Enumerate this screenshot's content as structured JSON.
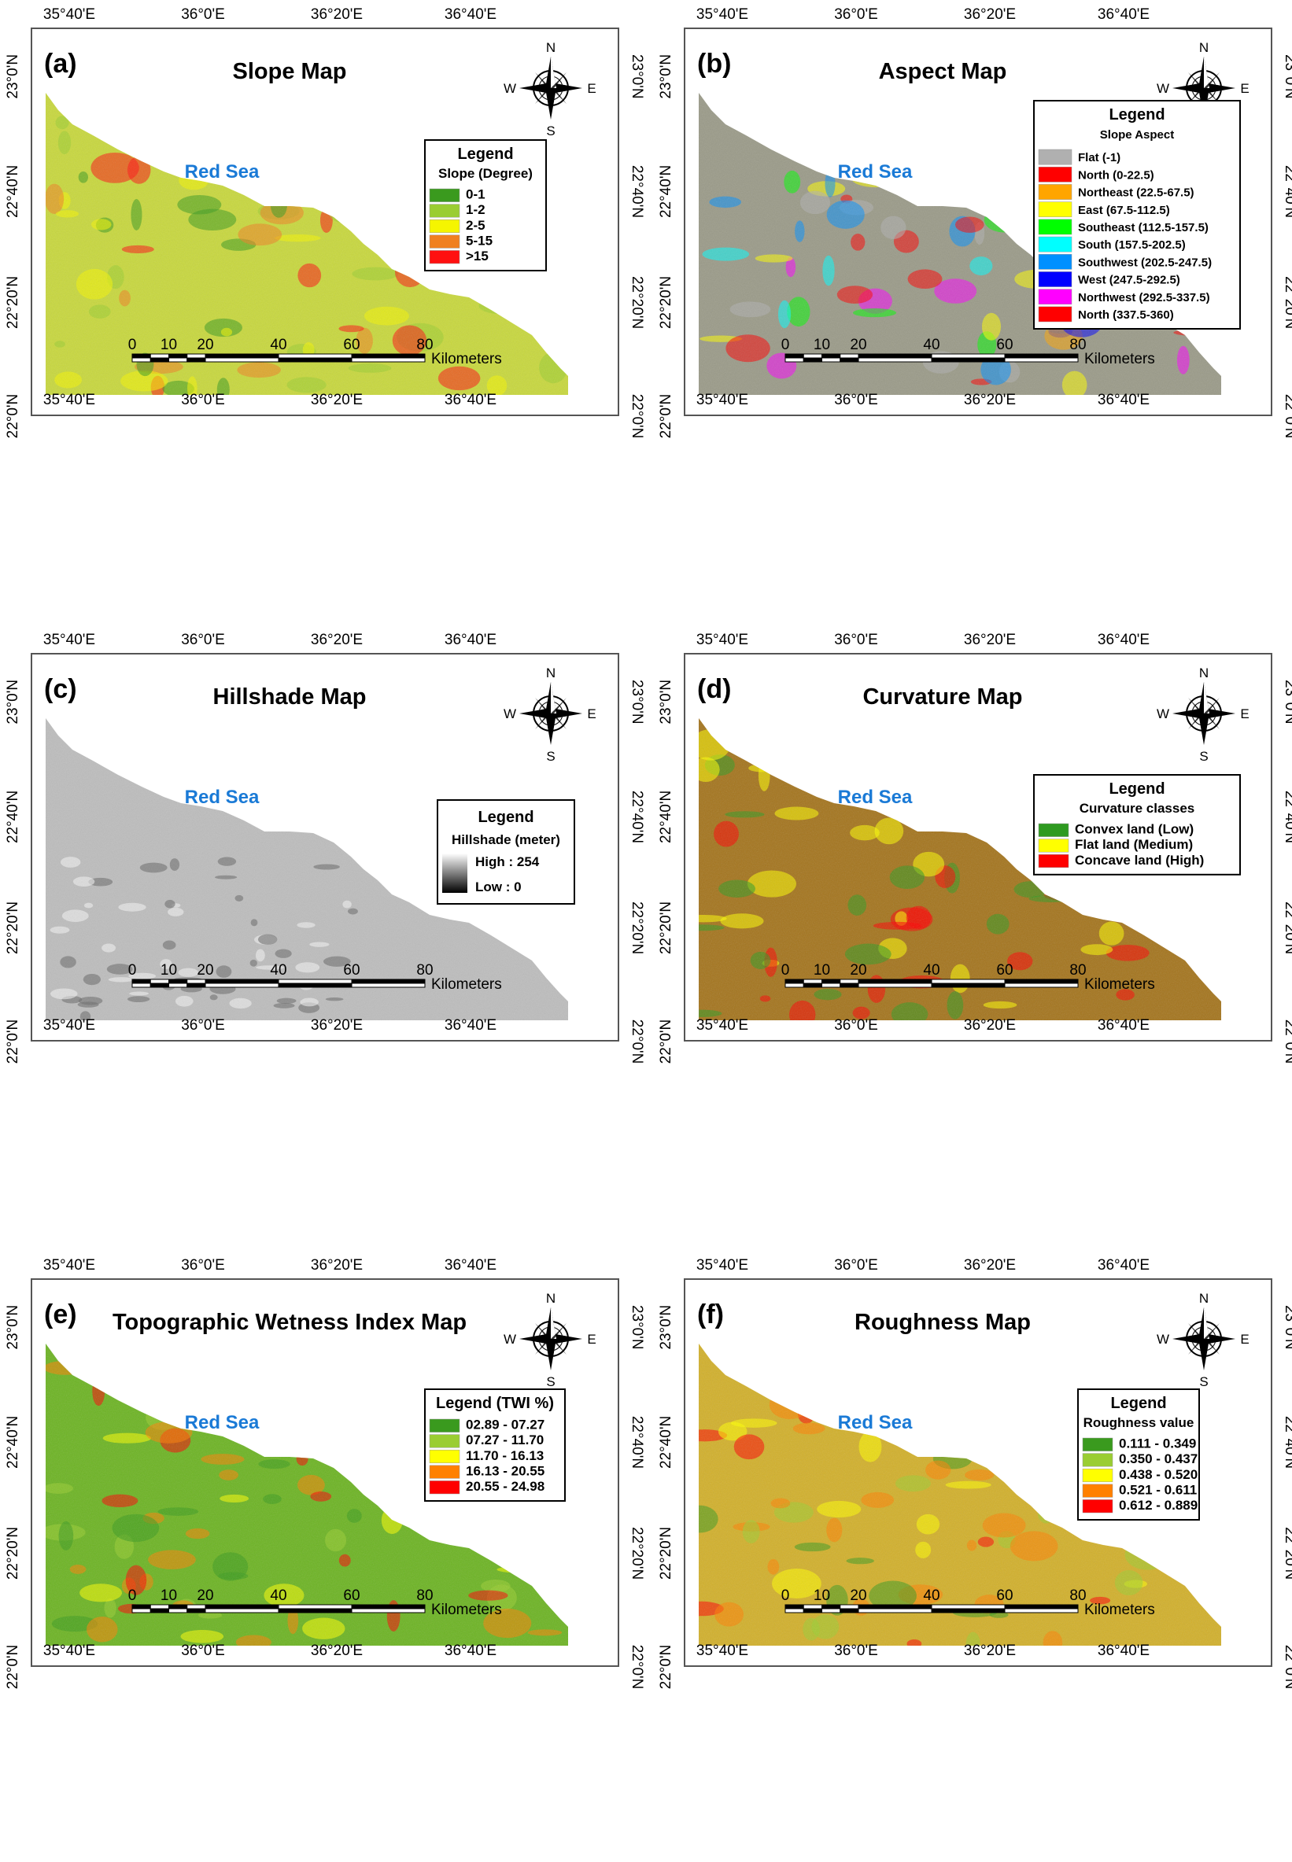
{
  "common": {
    "lon_labels": [
      "35°40'E",
      "36°0'E",
      "36°20'E",
      "36°40'E"
    ],
    "lat_labels": [
      "23°0'N",
      "22°40'N",
      "22°20'N",
      "22°0'N"
    ],
    "sea_label": "Red Sea",
    "compass": {
      "n": "N",
      "s": "S",
      "e": "E",
      "w": "W"
    },
    "scale": {
      "ticks": [
        "0",
        "10",
        "20",
        "40",
        "60",
        "80"
      ],
      "unit": "Kilometers"
    },
    "legend_title": "Legend"
  },
  "panels": [
    {
      "letter": "(a)",
      "title": "Slope Map",
      "type": "classes",
      "legend_title": "Legend",
      "legend_subtitle": "Slope (Degree)",
      "base_color": "#c8d83c",
      "items": [
        {
          "label": "0-1",
          "color": "#3a9a1e"
        },
        {
          "label": "1-2",
          "color": "#9acd32"
        },
        {
          "label": "2-5",
          "color": "#f5f500"
        },
        {
          "label": "5-15",
          "color": "#f08020"
        },
        {
          "label": ">15",
          "color": "#ff1010"
        }
      ]
    },
    {
      "letter": "(b)",
      "title": "Aspect Map",
      "type": "classes",
      "legend_title": "Legend",
      "legend_subtitle": "Slope Aspect",
      "base_color": "#9a9a88",
      "items": [
        {
          "label": "Flat (-1)",
          "color": "#b0b0b0"
        },
        {
          "label": "North (0-22.5)",
          "color": "#ff0000"
        },
        {
          "label": "Northeast (22.5-67.5)",
          "color": "#ffa500"
        },
        {
          "label": "East (67.5-112.5)",
          "color": "#ffff00"
        },
        {
          "label": "Southeast (112.5-157.5)",
          "color": "#00ff00"
        },
        {
          "label": "South (157.5-202.5)",
          "color": "#00ffff"
        },
        {
          "label": "Southwest (202.5-247.5)",
          "color": "#0090ff"
        },
        {
          "label": "West (247.5-292.5)",
          "color": "#0000ff"
        },
        {
          "label": "Northwest (292.5-337.5)",
          "color": "#ff00ff"
        },
        {
          "label": "North (337.5-360)",
          "color": "#ff0000"
        }
      ]
    },
    {
      "letter": "(c)",
      "title": "Hillshade Map",
      "type": "gradient",
      "legend_title": "Legend",
      "legend_subtitle": "Hillshade (meter)",
      "base_color": "#bdbdbd",
      "high_label": "High : 254",
      "low_label": "Low : 0",
      "items": []
    },
    {
      "letter": "(d)",
      "title": "Curvature Map",
      "type": "classes",
      "legend_title": "Legend",
      "legend_subtitle": "Curvature classes",
      "base_color": "#a4741c",
      "items": [
        {
          "label": "Convex land (Low)",
          "color": "#2e9a20"
        },
        {
          "label": "Flat land (Medium)",
          "color": "#ffff00"
        },
        {
          "label": "Concave land (High)",
          "color": "#ff0000"
        }
      ]
    },
    {
      "letter": "(e)",
      "title": "Topographic Wetness Index Map",
      "type": "classes",
      "legend_title": "Legend (TWI %)",
      "legend_subtitle": "",
      "base_color": "#6cb422",
      "items": [
        {
          "label": "02.89 - 07.27",
          "color": "#3a9a1e"
        },
        {
          "label": "07.27 - 11.70",
          "color": "#9acd32"
        },
        {
          "label": "11.70 - 16.13",
          "color": "#ffff00"
        },
        {
          "label": "16.13 - 20.55",
          "color": "#ff8000"
        },
        {
          "label": "20.55 - 24.98",
          "color": "#ff0000"
        }
      ]
    },
    {
      "letter": "(f)",
      "title": "Roughness Map",
      "type": "classes",
      "legend_title": "Legend",
      "legend_subtitle": "Roughness value",
      "base_color": "#d2b02a",
      "items": [
        {
          "label": "0.111 - 0.349",
          "color": "#3a9a1e"
        },
        {
          "label": "0.350 - 0.437",
          "color": "#9acd32"
        },
        {
          "label": "0.438 - 0.520",
          "color": "#ffff00"
        },
        {
          "label": "0.521 - 0.611",
          "color": "#ff8000"
        },
        {
          "label": "0.612 - 0.889",
          "color": "#ff0000"
        }
      ]
    }
  ]
}
